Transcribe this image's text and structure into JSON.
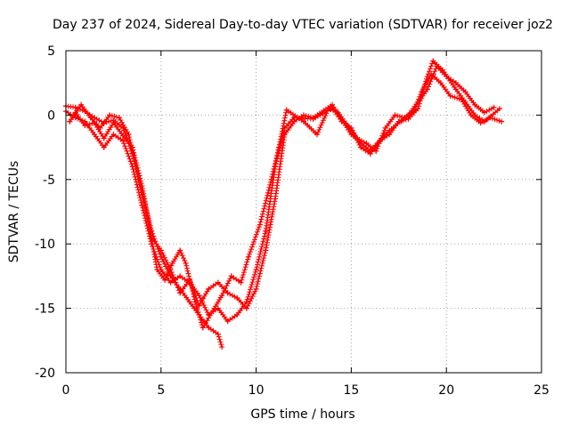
{
  "chart_data": {
    "type": "scatter",
    "title": "Day 237 of 2024, Sidereal Day-to-day VTEC variation (SDTVAR) for receiver joz2",
    "xlabel": "GPS time / hours",
    "ylabel": "SDTVAR / TECUs",
    "xlim": [
      0,
      25
    ],
    "ylim": [
      -20,
      5
    ],
    "xticks": [
      0,
      5,
      10,
      15,
      20,
      25
    ],
    "yticks": [
      5,
      0,
      -5,
      -10,
      -15,
      -20
    ],
    "xtick_labels": [
      "0",
      "5",
      "10",
      "15",
      "20",
      "25"
    ],
    "ytick_labels": [
      "5",
      "0",
      "-5",
      "-10",
      "-15",
      "-20"
    ],
    "grid": true,
    "marker": "plus",
    "color": "#ff0000",
    "series": [
      {
        "points": [
          [
            0.0,
            0.7
          ],
          [
            0.5,
            0.6
          ],
          [
            1.0,
            0.3
          ],
          [
            1.5,
            -0.2
          ],
          [
            2.0,
            -0.6
          ],
          [
            2.5,
            -0.4
          ],
          [
            3.0,
            -1.0
          ],
          [
            3.5,
            -3.0
          ],
          [
            4.0,
            -6.0
          ],
          [
            4.5,
            -9.0
          ],
          [
            5.0,
            -11.0
          ],
          [
            5.5,
            -12.5
          ],
          [
            6.0,
            -13.5
          ],
          [
            6.5,
            -14.5
          ],
          [
            7.0,
            -15.5
          ],
          [
            7.5,
            -16.5
          ],
          [
            8.0,
            -17.0
          ],
          [
            8.2,
            -18.0
          ]
        ]
      },
      {
        "points": [
          [
            0.0,
            0.3
          ],
          [
            0.5,
            -0.2
          ],
          [
            1.0,
            -0.5
          ],
          [
            1.5,
            -1.5
          ],
          [
            2.0,
            -2.5
          ],
          [
            2.5,
            -1.5
          ],
          [
            3.0,
            -2.0
          ],
          [
            3.5,
            -4.0
          ],
          [
            4.0,
            -7.0
          ],
          [
            4.5,
            -10.0
          ],
          [
            5.0,
            -12.0
          ],
          [
            5.5,
            -13.0
          ],
          [
            6.0,
            -12.5
          ],
          [
            6.5,
            -13.0
          ],
          [
            7.0,
            -14.0
          ],
          [
            7.5,
            -15.5
          ],
          [
            8.0,
            -15.0
          ],
          [
            8.5,
            -16.0
          ],
          [
            9.0,
            -15.5
          ],
          [
            9.5,
            -14.5
          ],
          [
            10.0,
            -12.0
          ],
          [
            10.5,
            -9.0
          ],
          [
            11.0,
            -4.0
          ],
          [
            11.5,
            -1.0
          ],
          [
            12.0,
            -0.2
          ],
          [
            13.0,
            -0.3
          ],
          [
            13.5,
            0.1
          ],
          [
            14.0,
            0.6
          ],
          [
            14.5,
            -0.5
          ],
          [
            15.0,
            -1.0
          ],
          [
            15.5,
            -2.5
          ],
          [
            16.0,
            -3.0
          ],
          [
            16.5,
            -2.0
          ],
          [
            17.0,
            -1.5
          ],
          [
            17.5,
            -0.5
          ],
          [
            18.0,
            -0.3
          ],
          [
            18.5,
            0.5
          ],
          [
            19.0,
            3.0
          ],
          [
            19.3,
            4.2
          ],
          [
            19.8,
            3.5
          ],
          [
            20.5,
            2.0
          ],
          [
            21.0,
            1.0
          ],
          [
            21.5,
            0.0
          ],
          [
            22.0,
            -0.5
          ],
          [
            22.8,
            0.5
          ]
        ]
      },
      {
        "points": [
          [
            0.2,
            -0.5
          ],
          [
            0.8,
            0.8
          ],
          [
            1.3,
            -0.2
          ],
          [
            1.8,
            -1.0
          ],
          [
            2.3,
            0.0
          ],
          [
            2.8,
            -0.2
          ],
          [
            3.3,
            -1.5
          ],
          [
            3.8,
            -5.0
          ],
          [
            4.3,
            -8.0
          ],
          [
            4.8,
            -12.0
          ],
          [
            5.2,
            -12.8
          ],
          [
            5.6,
            -11.5
          ],
          [
            6.0,
            -10.5
          ],
          [
            6.3,
            -11.5
          ],
          [
            6.8,
            -14.5
          ],
          [
            7.2,
            -16.5
          ],
          [
            7.8,
            -15.0
          ],
          [
            8.2,
            -14.0
          ],
          [
            8.7,
            -12.5
          ],
          [
            9.2,
            -13.0
          ],
          [
            9.6,
            -11.0
          ],
          [
            10.2,
            -8.5
          ],
          [
            10.8,
            -5.0
          ],
          [
            11.2,
            -2.5
          ],
          [
            11.6,
            0.4
          ],
          [
            12.5,
            -0.5
          ],
          [
            13.2,
            -1.5
          ],
          [
            13.8,
            0.5
          ],
          [
            14.3,
            0.2
          ],
          [
            14.8,
            -0.8
          ],
          [
            15.3,
            -1.8
          ],
          [
            15.8,
            -2.2
          ],
          [
            16.3,
            -2.8
          ],
          [
            16.8,
            -1.0
          ],
          [
            17.3,
            0.0
          ],
          [
            17.8,
            -0.2
          ],
          [
            18.3,
            0.3
          ],
          [
            18.7,
            1.8
          ],
          [
            19.2,
            3.2
          ],
          [
            19.7,
            2.5
          ],
          [
            20.2,
            1.5
          ],
          [
            20.8,
            1.2
          ],
          [
            21.3,
            0.0
          ],
          [
            21.8,
            -0.6
          ],
          [
            22.3,
            -0.2
          ],
          [
            22.9,
            -0.5
          ]
        ]
      },
      {
        "points": [
          [
            0.5,
            0.2
          ],
          [
            1.0,
            -0.8
          ],
          [
            1.5,
            -0.6
          ],
          [
            2.0,
            -1.8
          ],
          [
            2.5,
            -0.6
          ],
          [
            3.0,
            -1.6
          ],
          [
            3.5,
            -2.5
          ],
          [
            4.0,
            -5.5
          ],
          [
            4.5,
            -9.5
          ],
          [
            5.0,
            -10.5
          ],
          [
            5.5,
            -12.0
          ],
          [
            6.0,
            -13.8
          ],
          [
            6.5,
            -12.8
          ],
          [
            7.0,
            -14.8
          ],
          [
            7.5,
            -13.5
          ],
          [
            8.0,
            -13.0
          ],
          [
            8.5,
            -13.8
          ],
          [
            9.0,
            -14.2
          ],
          [
            9.5,
            -15.0
          ],
          [
            10.0,
            -13.5
          ],
          [
            10.5,
            -10.5
          ],
          [
            11.0,
            -6.5
          ],
          [
            11.5,
            -1.5
          ],
          [
            12.0,
            -0.5
          ],
          [
            12.5,
            0.0
          ],
          [
            13.0,
            -0.2
          ],
          [
            14.0,
            0.8
          ],
          [
            15.0,
            -1.5
          ],
          [
            16.0,
            -2.8
          ],
          [
            17.0,
            -1.2
          ],
          [
            18.0,
            0.0
          ],
          [
            19.0,
            2.0
          ],
          [
            19.5,
            3.8
          ],
          [
            20.0,
            3.0
          ],
          [
            20.5,
            2.5
          ],
          [
            21.0,
            1.8
          ],
          [
            21.5,
            0.8
          ],
          [
            22.0,
            0.2
          ],
          [
            22.5,
            0.6
          ]
        ]
      }
    ]
  }
}
